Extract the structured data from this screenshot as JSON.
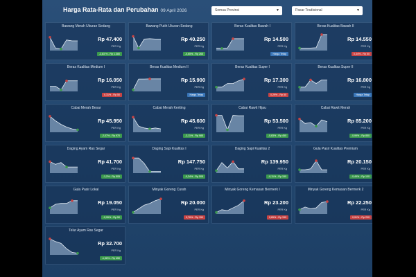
{
  "header": {
    "title": "Harga Rata-Rata dan Perubahan",
    "date": "09 April 2026",
    "province_select": "Semua Provinsi",
    "market_select": "Pasar Tradisional",
    "dropdown_icon": "chevron-down-icon"
  },
  "colors": {
    "up": "#c94444",
    "down": "#3c9a4e",
    "flat": "#3a76b8",
    "spark_fill": "#a9c3df",
    "spark_line": "#e8f0f8"
  },
  "commodities": [
    {
      "name": "Bawang Merah Ukuran Sedang",
      "price": "Rp 47.400",
      "unit": "PER Kg",
      "change": "-2,83 % - Rp 1.380",
      "trend": "down",
      "spark": [
        0.7,
        0.1,
        0.05,
        0.55,
        0.5,
        0.5
      ]
    },
    {
      "name": "Bawang Putih Ukuran Sedang",
      "price": "Rp 40.250",
      "unit": "PER Kg",
      "change": "-0,65% - Rp 265",
      "trend": "down",
      "spark": [
        0.75,
        0.1,
        0.6,
        0.62,
        0.6,
        0.6
      ]
    },
    {
      "name": "Beras Kualitas Bawah I",
      "price": "Rp 14.500",
      "unit": "PER Kg",
      "change": "Harga Tetap",
      "trend": "flat",
      "spark": [
        0.1,
        0.08,
        0.1,
        0.62,
        0.62,
        0.62
      ]
    },
    {
      "name": "Beras Kualitas Bawah II",
      "price": "Rp 14.550",
      "unit": "PER Kg",
      "change": "0,34% - Rp 50",
      "trend": "up",
      "spark": [
        0.1,
        0.1,
        0.1,
        0.12,
        0.85,
        0.85
      ]
    },
    {
      "name": "Beras Kualitas Medium I",
      "price": "Rp 16.050",
      "unit": "PER Kg",
      "change": "0,31% - Rp 50",
      "trend": "up",
      "spark": [
        0.25,
        0.25,
        0.05,
        0.55,
        0.55,
        0.55
      ]
    },
    {
      "name": "Beras Kualitas Medium II",
      "price": "Rp 15.900",
      "unit": "PER Kg",
      "change": "Harga Tetap",
      "trend": "flat",
      "spark": [
        0.05,
        0.65,
        0.65,
        0.66,
        0.66,
        0.66
      ]
    },
    {
      "name": "Beras Kualitas Super I",
      "price": "Rp 17.300",
      "unit": "PER Kg",
      "change": "0,29% - Rp 50",
      "trend": "up",
      "spark": [
        0.2,
        0.2,
        0.4,
        0.4,
        0.55,
        0.65
      ]
    },
    {
      "name": "Beras Kualitas Super II",
      "price": "Rp 16.800",
      "unit": "PER Kg",
      "change": "Harga Tetap",
      "trend": "flat",
      "spark": [
        0.2,
        0.2,
        0.6,
        0.4,
        0.6,
        0.6
      ]
    },
    {
      "name": "Cabai Merah Besar",
      "price": "Rp 45.950",
      "unit": "PER Kg",
      "change": "-2,07% - Rp 970",
      "trend": "down",
      "spark": [
        0.85,
        0.6,
        0.4,
        0.25,
        0.15,
        0.1
      ]
    },
    {
      "name": "Cabai Merah Keriting",
      "price": "Rp 45.600",
      "unit": "PER Kg",
      "change": "-2,11% - Rp 985",
      "trend": "down",
      "spark": [
        0.8,
        0.3,
        0.2,
        0.15,
        0.2,
        0.15
      ]
    },
    {
      "name": "Cabai Rawit Hijau",
      "price": "Rp 53.500",
      "unit": "PER Kg",
      "change": "-0,83% - Rp 450",
      "trend": "down",
      "spark": [
        0.9,
        0.9,
        0.1,
        0.9,
        0.88,
        0.88
      ]
    },
    {
      "name": "Cabai Rawit Merah",
      "price": "Rp 85.200",
      "unit": "PER Kg",
      "change": "-0,99% - Rp 850",
      "trend": "down",
      "spark": [
        0.7,
        0.45,
        0.5,
        0.3,
        0.65,
        0.55
      ]
    },
    {
      "name": "Daging Ayam Ras Segar",
      "price": "Rp 41.700",
      "unit": "PER Kg",
      "change": "-1,2% - Rp 505",
      "trend": "down",
      "spark": [
        0.6,
        0.45,
        0.55,
        0.3,
        0.3,
        0.3
      ]
    },
    {
      "name": "Daging Sapi Kualitas I",
      "price": "Rp 147.750",
      "unit": "PER Kg",
      "change": "-0,34% - Rp 505",
      "trend": "down",
      "spark": [
        0.8,
        0.8,
        0.5,
        0.05,
        0.05,
        0.05
      ]
    },
    {
      "name": "Daging Sapi Kualitas 2",
      "price": "Rp 139.950",
      "unit": "PER Kg",
      "change": "-0,11% - Rp 150",
      "trend": "down",
      "spark": [
        0.1,
        0.55,
        0.25,
        0.6,
        0.2,
        0.2
      ]
    },
    {
      "name": "Gula Pasir Kualitas Premium",
      "price": "Rp 20.150",
      "unit": "PER Kg",
      "change": "-0,49% - Rp 100",
      "trend": "down",
      "spark": [
        0.15,
        0.15,
        0.2,
        0.65,
        0.15,
        0.15
      ]
    },
    {
      "name": "Gula Pasir Lokal",
      "price": "Rp 19.050",
      "unit": "PER Kg",
      "change": "-0,26% - Rp 50",
      "trend": "down",
      "spark": [
        0.3,
        0.5,
        0.55,
        0.55,
        0.7,
        0.7
      ]
    },
    {
      "name": "Minyak Goreng Curah",
      "price": "Rp 20.000",
      "unit": "PER Kg",
      "change": "0,76% - Rp 150",
      "trend": "up",
      "spark": [
        0.05,
        0.25,
        0.45,
        0.55,
        0.7,
        0.8
      ]
    },
    {
      "name": "Minyak Goreng Kemasan Bermerk I",
      "price": "Rp 23.200",
      "unit": "PER Kg",
      "change": "0,65% - Rp 150",
      "trend": "up",
      "spark": [
        0.05,
        0.2,
        0.15,
        0.3,
        0.45,
        0.7
      ]
    },
    {
      "name": "Minyak Goreng Kemasan Bermerk 2",
      "price": "Rp 22.250",
      "unit": "PER Kg",
      "change": "0,91% - Rp 200",
      "trend": "up",
      "spark": [
        0.2,
        0.35,
        0.25,
        0.3,
        0.6,
        0.65
      ]
    },
    {
      "name": "Telur Ayam Ras Segar",
      "price": "Rp 32.700",
      "unit": "PER Kg",
      "change": "-1,36% - Rp 450",
      "trend": "down",
      "spark": [
        0.85,
        0.7,
        0.6,
        0.3,
        0.1,
        0.05
      ]
    }
  ]
}
